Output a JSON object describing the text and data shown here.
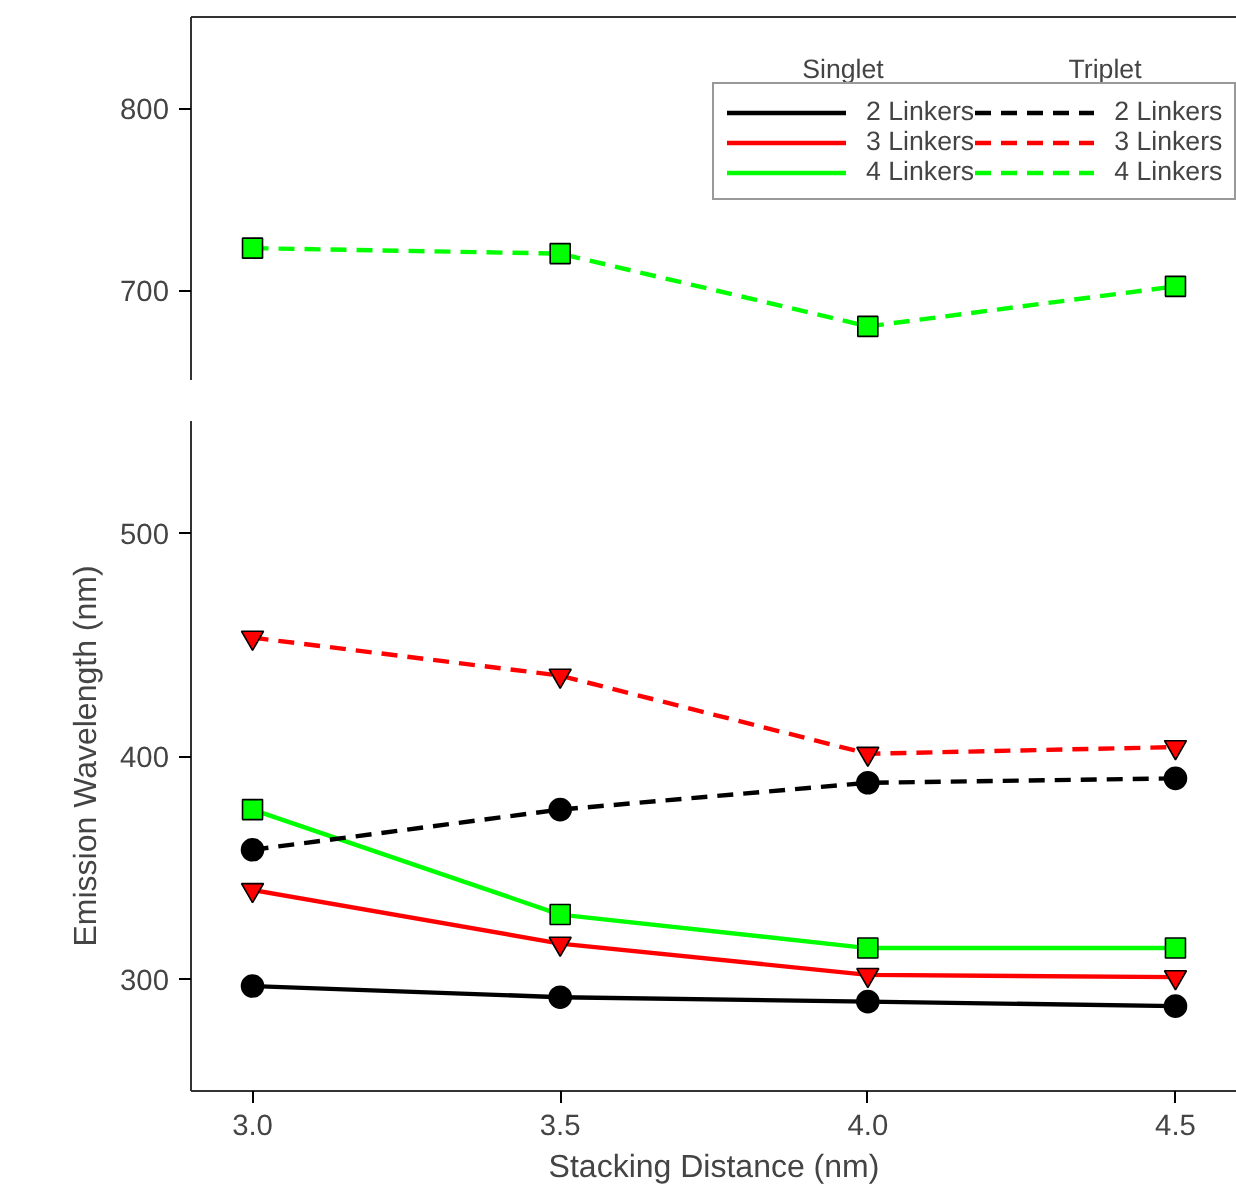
{
  "chart_data": [
    {
      "type": "line",
      "x": [
        3.0,
        3.5,
        4.0,
        4.5
      ],
      "xlim": [
        2.9,
        4.6
      ],
      "ylim": [
        650,
        850
      ],
      "yticks": [
        700,
        800
      ],
      "tick_labels": "y",
      "grid": false,
      "legend": "top right",
      "annotations": [
        "Singlet",
        "Triplet"
      ],
      "series": [
        {
          "name": "2 Linkers",
          "color": "#000000",
          "marker": "circle",
          "line_style": "solid",
          "values": [
            null,
            null,
            null,
            null
          ]
        },
        {
          "name": "3 Linkers",
          "color": "#ff0000",
          "marker": "triangle",
          "line_style": "solid",
          "values": [
            null,
            null,
            null,
            null
          ]
        },
        {
          "name": "4 Linkers",
          "color": "#00ff00",
          "marker": "square",
          "line_style": "solid",
          "values": [
            null,
            null,
            null,
            null
          ]
        },
        {
          "name": "2 Linkers",
          "color": "#000000",
          "marker": "circle",
          "line_style": "dashed",
          "values": [
            null,
            null,
            null,
            null
          ]
        },
        {
          "name": "3 Linkers",
          "color": "#ff0000",
          "marker": "triangle",
          "line_style": "dashed",
          "values": [
            null,
            null,
            null,
            null
          ]
        },
        {
          "name": "4 Linkers",
          "color": "#00ff00",
          "marker": "square",
          "line_style": "dashed",
          "values": [
            723,
            720,
            680,
            702
          ]
        }
      ]
    },
    {
      "type": "line",
      "x": [
        3.0,
        3.5,
        4.0,
        4.5
      ],
      "xlim": [
        2.9,
        4.6
      ],
      "ylim": [
        250,
        550
      ],
      "yticks": [
        300,
        400,
        500
      ],
      "xticks": [
        {
          "value": 3.0,
          "label": "3.0"
        },
        {
          "value": 3.5,
          "label": "3.5"
        },
        {
          "value": 4.0,
          "label": "4.0"
        },
        {
          "value": 4.5,
          "label": "4.5"
        }
      ],
      "xlabel": "Stacking Distance (nm)",
      "ylabel": "Emission Wavelength (nm)",
      "grid": false,
      "series": [
        {
          "color": "#000000",
          "marker": "circle",
          "line_style": "solid",
          "values": [
            297,
            292,
            290,
            288
          ]
        },
        {
          "color": "#ff0000",
          "marker": "triangle",
          "line_style": "solid",
          "values": [
            340,
            316,
            302,
            301
          ]
        },
        {
          "color": "#00ff00",
          "marker": "square",
          "line_style": "solid",
          "values": [
            376,
            329,
            314,
            314
          ]
        },
        {
          "color": "#000000",
          "marker": "circle",
          "line_style": "dashed",
          "values": [
            358,
            376,
            388,
            390
          ]
        },
        {
          "color": "#ff0000",
          "marker": "triangle",
          "line_style": "dashed",
          "values": [
            453,
            436,
            401,
            404
          ]
        },
        {
          "color": "#00ff00",
          "marker": "square",
          "line_style": "dashed",
          "values": [
            null,
            null,
            null,
            null
          ]
        }
      ]
    }
  ]
}
